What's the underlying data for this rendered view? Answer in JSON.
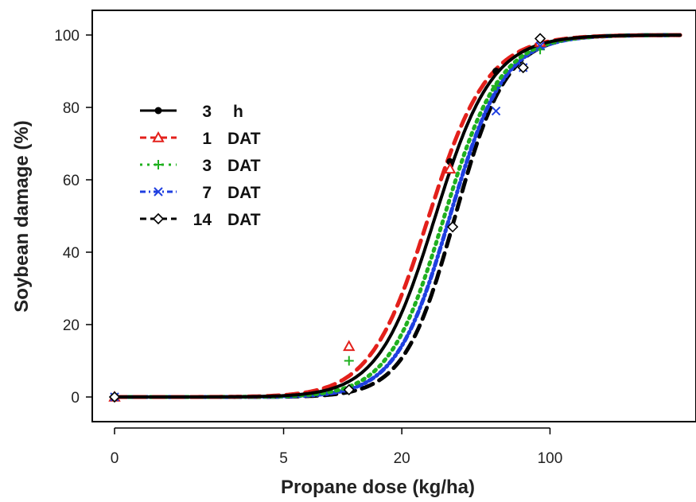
{
  "chart_data": {
    "type": "line",
    "xlabel": "Propane dose (kg/ha)",
    "ylabel": "Soybean damage (%)",
    "x_scale": "log(dose+1)",
    "xlim": [
      0,
      400
    ],
    "ylim": [
      0,
      100
    ],
    "x_ticks": [
      0,
      5,
      20,
      100
    ],
    "x_tick_labels": [
      "0",
      "5",
      "20",
      "100"
    ],
    "y_ticks": [
      0,
      20,
      40,
      60,
      80,
      100
    ],
    "y_tick_labels": [
      "0",
      "20",
      "40",
      "60",
      "80",
      "100"
    ],
    "grid": false,
    "legend_position": "upper-left",
    "series": [
      {
        "name": "h",
        "legend_num": "3",
        "color": "#000000",
        "dash": "none",
        "marker": "filled-circle",
        "ed50": 29.0,
        "slope": 3.2,
        "points": [
          {
            "x": 0,
            "y": 0
          },
          {
            "x": 34,
            "y": 65
          },
          {
            "x": 56,
            "y": 90
          },
          {
            "x": 90,
            "y": 99
          }
        ]
      },
      {
        "name": "DAT",
        "legend_num": "1",
        "color": "#e3201b",
        "dash": "15,9",
        "marker": "triangle",
        "ed50": 27.0,
        "slope": 3.1,
        "points": [
          {
            "x": 0,
            "y": 0
          },
          {
            "x": 11,
            "y": 14
          },
          {
            "x": 34,
            "y": 63
          },
          {
            "x": 90,
            "y": 98
          }
        ]
      },
      {
        "name": "DAT",
        "legend_num": "3",
        "color": "#1fb01f",
        "dash": "3,6",
        "marker": "plus",
        "ed50": 32.0,
        "slope": 3.3,
        "points": [
          {
            "x": 0,
            "y": 0
          },
          {
            "x": 11,
            "y": 10
          },
          {
            "x": 56,
            "y": 86
          },
          {
            "x": 90,
            "y": 96
          }
        ]
      },
      {
        "name": "DAT",
        "legend_num": "7",
        "color": "#1f3fe0",
        "dash": "7,4,2,4",
        "marker": "x",
        "ed50": 34.0,
        "slope": 3.4,
        "points": [
          {
            "x": 0,
            "y": 0
          },
          {
            "x": 56,
            "y": 79
          },
          {
            "x": 75,
            "y": 91
          },
          {
            "x": 90,
            "y": 97
          }
        ]
      },
      {
        "name": "DAT",
        "legend_num": "14",
        "color": "#000000",
        "dash": "15,9",
        "marker": "diamond",
        "ed50": 36.0,
        "slope": 3.6,
        "points": [
          {
            "x": 0,
            "y": 0
          },
          {
            "x": 11,
            "y": 2
          },
          {
            "x": 35,
            "y": 47
          },
          {
            "x": 75,
            "y": 91
          },
          {
            "x": 90,
            "y": 99
          }
        ]
      }
    ]
  }
}
